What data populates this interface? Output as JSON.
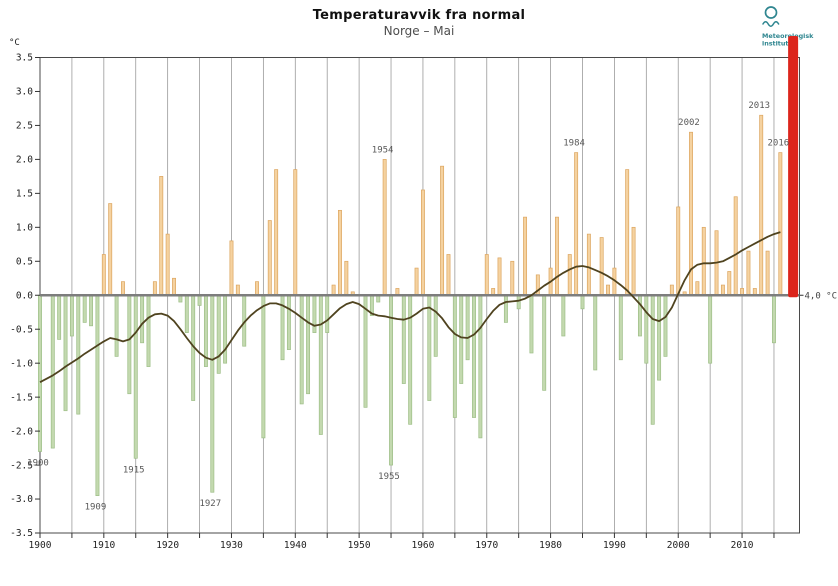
{
  "header": {
    "title": "Temperaturavvik fra normal",
    "subtitle": "Norge – Mai"
  },
  "logo": {
    "line1": "Meteorologisk",
    "line2": "institutt",
    "color": "#2f8690"
  },
  "axes": {
    "unit_label": "°C",
    "y_tick_labels": [
      "3.5",
      "3.0",
      "2.5",
      "2.0",
      "1.5",
      "1.0",
      "0.5",
      "0.0",
      "-0.5",
      "-1.0",
      "-1.5",
      "-2.0",
      "-2.5",
      "-3.0",
      "-3.5"
    ],
    "x_tick_labels": [
      "1900",
      "1910",
      "1920",
      "1930",
      "1940",
      "1950",
      "1960",
      "1970",
      "1980",
      "1990",
      "2000",
      "2010"
    ]
  },
  "colors": {
    "positive_bar_fill": "#f5d2a0",
    "positive_bar_edge": "#dca55f",
    "negative_bar_fill": "#c3d9af",
    "negative_bar_edge": "#9dbe86",
    "trend_line": "#4f431f",
    "zero_line": "#7d7d7d",
    "grid_line": "#9a9a9a",
    "box_border": "#4a4a4a",
    "offscale_bar": "#dc251c",
    "annotation_text": "#595959",
    "tick_text": "#222222"
  },
  "chart_data": {
    "type": "bar",
    "title": "Temperaturavvik fra normal",
    "subtitle": "Norge – Mai",
    "xlabel": "",
    "ylabel": "°C",
    "ylim": [
      -3.5,
      3.5
    ],
    "xlim": [
      1900,
      2019
    ],
    "grid": "vertical-every-5-years",
    "start_year": 1900,
    "end_year": 2016,
    "series": [
      {
        "name": "Temperaturavvik (°C)",
        "type": "bar",
        "values": [
          -2.3,
          0.0,
          -2.25,
          -0.65,
          -1.7,
          -0.6,
          -1.75,
          -0.4,
          -0.45,
          -2.95,
          0.6,
          1.35,
          -0.9,
          0.2,
          -1.45,
          -2.4,
          -0.7,
          -1.05,
          0.2,
          1.75,
          0.9,
          0.25,
          -0.1,
          -0.55,
          -1.55,
          -0.15,
          -1.05,
          -2.9,
          -1.15,
          -1.0,
          0.8,
          0.15,
          -0.75,
          0.0,
          0.2,
          -2.1,
          1.1,
          1.85,
          -0.95,
          -0.8,
          1.85,
          -1.6,
          -1.45,
          -0.55,
          -2.05,
          -0.55,
          0.15,
          1.25,
          0.5,
          0.05,
          0.0,
          -1.65,
          -0.3,
          -0.1,
          2.0,
          -2.5,
          0.1,
          -1.3,
          -1.9,
          0.4,
          1.55,
          -1.55,
          -0.9,
          1.9,
          0.6,
          -1.8,
          -1.3,
          -0.95,
          -1.8,
          -2.1,
          0.6,
          0.1,
          0.55,
          -0.4,
          0.5,
          -0.2,
          1.15,
          -0.85,
          0.3,
          -1.4,
          0.4,
          1.15,
          -0.6,
          0.6,
          2.1,
          -0.2,
          0.9,
          -1.1,
          0.85,
          0.15,
          0.4,
          -0.95,
          1.85,
          1.0,
          -0.6,
          -1.0,
          -1.9,
          -1.25,
          -0.9,
          0.15,
          1.3,
          0.05,
          2.4,
          0.2,
          1.0,
          -1.0,
          0.95,
          0.15,
          0.35,
          1.45,
          0.1,
          0.65,
          0.1,
          2.65,
          0.65,
          -0.7,
          2.1
        ]
      },
      {
        "name": "Glattet kurve",
        "type": "line",
        "values": [
          -1.28,
          -1.23,
          -1.18,
          -1.12,
          -1.05,
          -0.99,
          -0.93,
          -0.86,
          -0.8,
          -0.74,
          -0.68,
          -0.63,
          -0.65,
          -0.68,
          -0.65,
          -0.55,
          -0.42,
          -0.33,
          -0.28,
          -0.27,
          -0.3,
          -0.38,
          -0.5,
          -0.63,
          -0.75,
          -0.85,
          -0.92,
          -0.95,
          -0.9,
          -0.8,
          -0.66,
          -0.52,
          -0.4,
          -0.3,
          -0.22,
          -0.16,
          -0.12,
          -0.12,
          -0.15,
          -0.2,
          -0.26,
          -0.33,
          -0.4,
          -0.45,
          -0.43,
          -0.37,
          -0.28,
          -0.19,
          -0.13,
          -0.1,
          -0.13,
          -0.2,
          -0.27,
          -0.3,
          -0.31,
          -0.33,
          -0.35,
          -0.36,
          -0.33,
          -0.27,
          -0.2,
          -0.18,
          -0.24,
          -0.34,
          -0.47,
          -0.57,
          -0.62,
          -0.63,
          -0.58,
          -0.48,
          -0.35,
          -0.23,
          -0.14,
          -0.1,
          -0.09,
          -0.08,
          -0.05,
          0.0,
          0.07,
          0.14,
          0.2,
          0.27,
          0.33,
          0.38,
          0.42,
          0.43,
          0.41,
          0.37,
          0.33,
          0.28,
          0.22,
          0.15,
          0.07,
          -0.03,
          -0.13,
          -0.25,
          -0.35,
          -0.38,
          -0.32,
          -0.18,
          0.02,
          0.22,
          0.38,
          0.45,
          0.47,
          0.47,
          0.48,
          0.5,
          0.55,
          0.6,
          0.66,
          0.71,
          0.76,
          0.81,
          0.86,
          0.9,
          0.93
        ]
      }
    ],
    "annotations": [
      {
        "label": "1900",
        "year": 1900,
        "placement": "below"
      },
      {
        "label": "1909",
        "year": 1909,
        "placement": "below"
      },
      {
        "label": "1915",
        "year": 1915,
        "placement": "below"
      },
      {
        "label": "1927",
        "year": 1927,
        "placement": "below"
      },
      {
        "label": "1954",
        "year": 1954,
        "placement": "above"
      },
      {
        "label": "1955",
        "year": 1955,
        "placement": "below"
      },
      {
        "label": "1984",
        "year": 1984,
        "placement": "above"
      },
      {
        "label": "2002",
        "year": 2002,
        "placement": "above"
      },
      {
        "label": "2013",
        "year": 2013,
        "placement": "above"
      },
      {
        "label": "2016",
        "year": 2016,
        "placement": "above"
      }
    ],
    "offscale_bar": {
      "year": 2018,
      "value": 4.0,
      "label": "4,0 °C"
    },
    "x_major_tick_years": [
      1900,
      1910,
      1920,
      1930,
      1940,
      1950,
      1960,
      1970,
      1980,
      1990,
      2000,
      2010
    ],
    "x_minor_tick_step": 5,
    "y_tick_step": 0.5,
    "legend": "none"
  }
}
